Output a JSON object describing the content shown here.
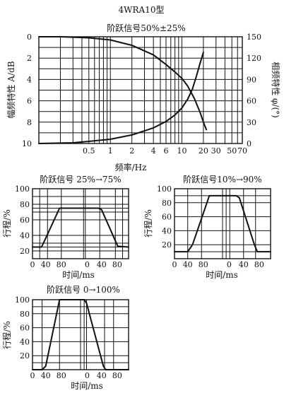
{
  "page_title": "4WRA10型",
  "chart_data": [
    {
      "id": "bode",
      "type": "line",
      "title": "阶跃信号50%±25%",
      "xlabel": "频率/Hz",
      "ylabel_left": "幅频特性 A/dB",
      "ylabel_right": "相频特性 φ/(°)",
      "xscale": "log",
      "xlim": [
        0.1,
        70
      ],
      "x_ticks": [
        "0.5",
        "1",
        "2",
        "4",
        "6",
        "10",
        "20",
        "30",
        "50",
        "70"
      ],
      "ylim_left": [
        0,
        10
      ],
      "y_ticks_left": [
        "0",
        "2",
        "4",
        "6",
        "8",
        "10"
      ],
      "ylim_right": [
        0,
        150
      ],
      "y_ticks_right": [
        "150",
        "120",
        "90",
        "60",
        "30",
        "0"
      ],
      "grid": true,
      "series": [
        {
          "axis": "left",
          "x": [
            0.1,
            0.2,
            0.5,
            1,
            2,
            4,
            6,
            8,
            10,
            12,
            15,
            18,
            20,
            22
          ],
          "y": [
            0,
            0,
            0.1,
            0.3,
            0.8,
            1.7,
            2.6,
            3.3,
            3.9,
            4.6,
            5.8,
            7.1,
            8.0,
            8.7
          ]
        },
        {
          "axis": "right",
          "x": [
            0.1,
            0.3,
            0.5,
            1,
            2,
            4,
            6,
            8,
            10,
            12,
            14,
            16,
            18,
            20
          ],
          "y": [
            0,
            1,
            3,
            6,
            12,
            22,
            31,
            40,
            50,
            62,
            76,
            95,
            113,
            128
          ]
        }
      ]
    },
    {
      "id": "step-25-75",
      "type": "line",
      "title": "阶跃信号 25%→75%",
      "xlabel": "时间/ms",
      "ylabel": "行程/%",
      "x_ticks": [
        "0",
        "40",
        "80",
        "0",
        "40",
        "80"
      ],
      "y_ticks": [
        "100",
        "80",
        "60",
        "40",
        "20"
      ],
      "ylim": [
        10,
        100
      ],
      "grid": true,
      "points": [
        [
          0,
          25
        ],
        [
          15,
          25
        ],
        [
          20,
          33
        ],
        [
          45,
          75
        ],
        [
          70,
          75
        ],
        [
          110,
          75
        ],
        [
          115,
          73
        ],
        [
          138,
          33
        ],
        [
          142,
          26
        ],
        [
          160,
          25
        ]
      ]
    },
    {
      "id": "step-10-90",
      "type": "line",
      "title": "阶跃信号10%→90%",
      "xlabel": "时间/ms",
      "ylabel": "行程/%",
      "x_ticks": [
        "0",
        "40",
        "80",
        "0",
        "40",
        "80"
      ],
      "y_ticks": [
        "100",
        "80",
        "60",
        "40",
        "20"
      ],
      "ylim": [
        0,
        100
      ],
      "grid": true,
      "points": [
        [
          0,
          10
        ],
        [
          22,
          10
        ],
        [
          30,
          20
        ],
        [
          58,
          90
        ],
        [
          70,
          90
        ],
        [
          103,
          90
        ],
        [
          108,
          87
        ],
        [
          133,
          20
        ],
        [
          138,
          10
        ],
        [
          160,
          10
        ]
      ]
    },
    {
      "id": "step-0-100",
      "type": "line",
      "title": "阶跃信号 0→100%",
      "xlabel": "时间/ms",
      "ylabel": "行程/%",
      "x_ticks": [
        "0",
        "40",
        "80",
        "0",
        "40",
        "80"
      ],
      "y_ticks": [
        "100",
        "80",
        "60",
        "40",
        "20"
      ],
      "ylim": [
        0,
        100
      ],
      "grid": true,
      "points": [
        [
          0,
          0
        ],
        [
          16,
          0
        ],
        [
          22,
          5
        ],
        [
          45,
          100
        ],
        [
          78,
          100
        ],
        [
          86,
          100
        ],
        [
          90,
          95
        ],
        [
          118,
          5
        ],
        [
          122,
          0
        ],
        [
          160,
          0
        ]
      ]
    }
  ]
}
